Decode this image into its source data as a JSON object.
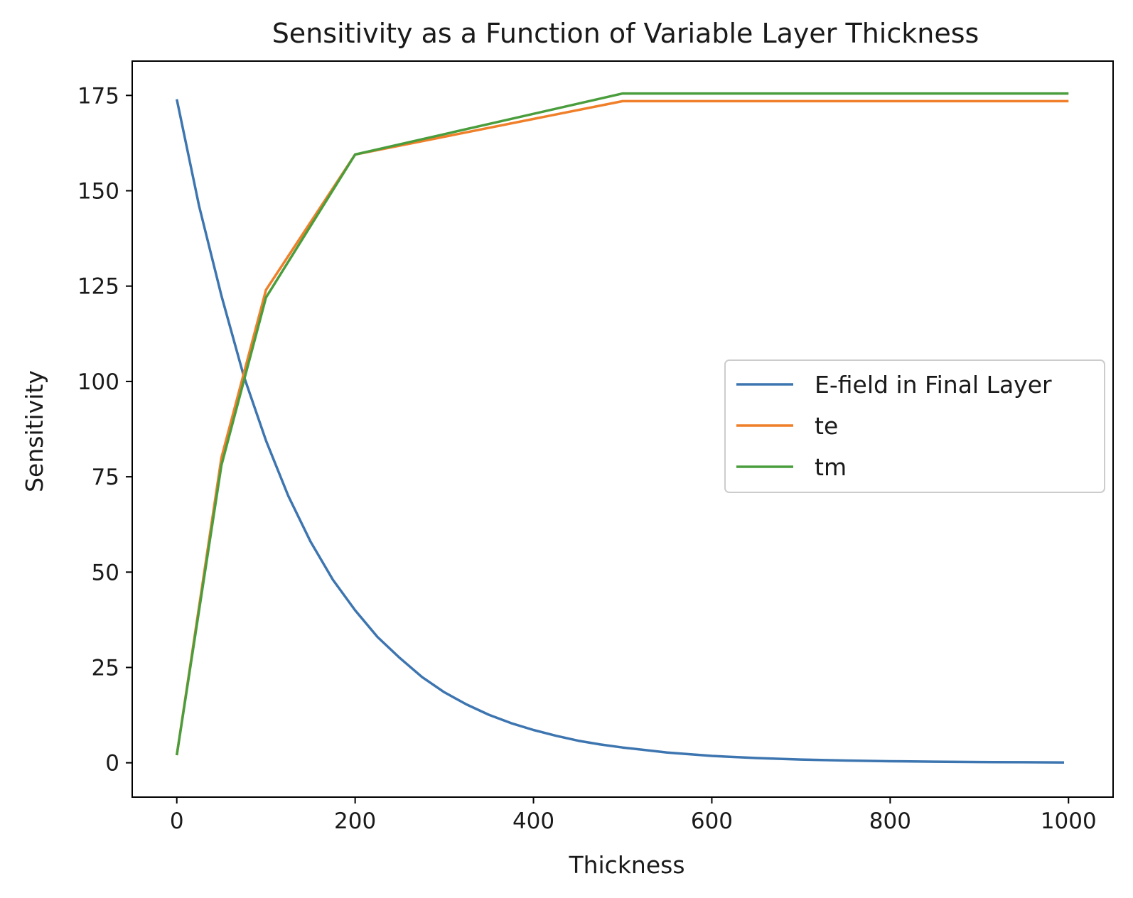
{
  "chart_data": {
    "type": "line",
    "title": "Sensitivity as a Function of Variable Layer Thickness",
    "xlabel": "Thickness",
    "ylabel": "Sensitivity",
    "xlim": [
      -50,
      1050
    ],
    "ylim": [
      -9,
      184
    ],
    "xticks": [
      0,
      200,
      400,
      600,
      800,
      1000
    ],
    "yticks": [
      0,
      25,
      50,
      75,
      100,
      125,
      150,
      175
    ],
    "grid": false,
    "legend_position": "center-right",
    "series": [
      {
        "name": "E-field in Final Layer",
        "color": "#3d75b0",
        "x": [
          0,
          25,
          50,
          75,
          100,
          125,
          150,
          175,
          200,
          225,
          250,
          275,
          300,
          325,
          350,
          375,
          400,
          425,
          450,
          475,
          500,
          550,
          600,
          650,
          700,
          750,
          800,
          850,
          900,
          950,
          995
        ],
        "y": [
          174,
          146,
          122.5,
          101.5,
          84.5,
          70,
          58,
          48,
          40,
          33,
          27.5,
          22.5,
          18.5,
          15.3,
          12.6,
          10.4,
          8.6,
          7.1,
          5.8,
          4.8,
          4,
          2.7,
          1.8,
          1.25,
          0.85,
          0.6,
          0.4,
          0.3,
          0.2,
          0.15,
          0.1
        ]
      },
      {
        "name": "te",
        "color": "#f07f2a",
        "x": [
          0,
          50,
          100,
          200,
          500,
          1000
        ],
        "y": [
          2,
          80,
          124,
          159.5,
          173.5,
          173.5
        ]
      },
      {
        "name": "tm",
        "color": "#4a9d3c",
        "x": [
          0,
          50,
          100,
          200,
          500,
          1000
        ],
        "y": [
          2,
          78,
          122,
          159.5,
          175.5,
          175.5
        ]
      }
    ]
  }
}
